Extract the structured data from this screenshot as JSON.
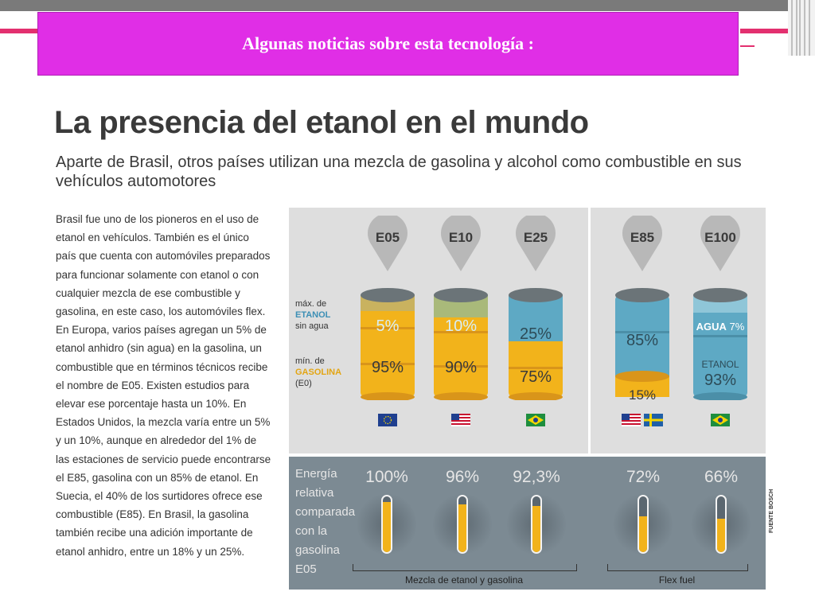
{
  "slide": {
    "title": "Algunas noticias sobre esta tecnología :",
    "colors": {
      "title_box": "#e02ee6",
      "accent": "#e3306f"
    }
  },
  "infographic": {
    "heading": "La presencia del etanol en el mundo",
    "subheading": "Aparte de Brasil, otros países utilizan una mezcla de gasolina y alcohol como combustible en sus vehículos automotores",
    "body": "Brasil fue uno de los pioneros en el uso de etanol en vehículos. También es el único país que cuenta con automóviles preparados para funcionar solamente con etanol o con cualquier mezcla de ese combustible y gasolina, en este caso, los automóviles flex. En Europa, varios países agregan un 5% de etanol anhidro (sin agua) en la gasolina, un combustible que en términos técnicos recibe el nombre de E05. Existen estudios para elevar ese porcentaje hasta un 10%. En Estados Unidos, la mezcla varía entre un 5% y un 10%, aunque en alrededor del 1% de las estaciones de servicio puede encontrarse el E85, gasolina con un 85% de etanol. En Suecia, el 40% de los surtidores ofrece ese combustible (E85). En Brasil, la gasolina también recibe una adición importante de etanol anhidro, entre un 18% y un 25%.",
    "legend": {
      "max_1": "máx. de",
      "max_2": "ETANOL",
      "max_3": "sin agua",
      "min_1": "mín. de",
      "min_2": "GASOLINA",
      "min_3": "(E0)"
    },
    "fuels": [
      {
        "tag": "E05",
        "top_pct": "5%",
        "bottom_pct": "95%",
        "flags": [
          "EU"
        ]
      },
      {
        "tag": "E10",
        "top_pct": "10%",
        "bottom_pct": "90%",
        "flags": [
          "US"
        ]
      },
      {
        "tag": "E25",
        "top_pct": "25%",
        "bottom_pct": "75%",
        "flags": [
          "BR"
        ]
      },
      {
        "tag": "E85",
        "top_pct": "85%",
        "bottom_pct": "15%",
        "flags": [
          "US",
          "SE"
        ]
      },
      {
        "tag": "E100",
        "top_label": "AGUA",
        "top_pct": "7%",
        "bottom_label": "ETANOL",
        "bottom_pct": "93%",
        "flags": [
          "BR"
        ]
      }
    ],
    "energy": {
      "label": "Energía relativa comparada con la gasolina E05",
      "label_lines": [
        "Energía",
        "relativa",
        "comparada",
        "con la",
        "gasolina",
        "E05"
      ],
      "values_text": [
        "100%",
        "96%",
        "92,3%",
        "72%",
        "66%"
      ],
      "values": [
        100,
        96,
        92.3,
        72,
        66
      ],
      "group_1": "Mezcla de etanol y gasolina",
      "group_2": "Flex fuel"
    },
    "source": "FUENTE BOSCH",
    "colors": {
      "gasoline": "#f2b31b",
      "ethanol": "#5ea9c4",
      "panel": "#dedede",
      "energy_panel": "#7c8a93"
    }
  }
}
